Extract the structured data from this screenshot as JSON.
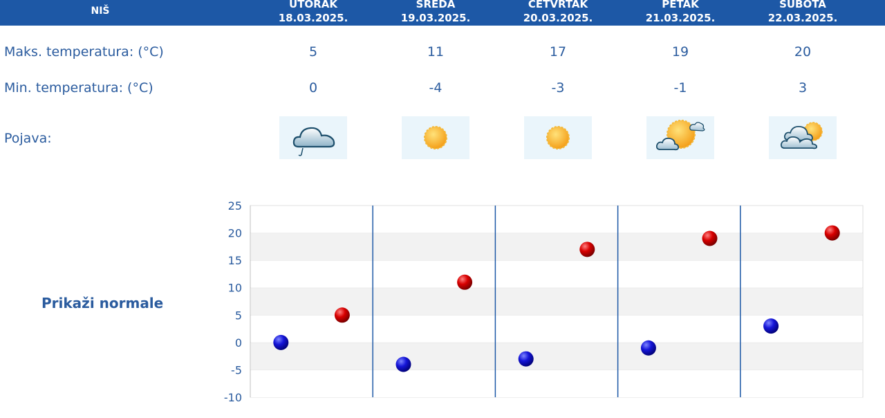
{
  "header": {
    "city": "NIŠ"
  },
  "days": [
    {
      "name": "UTORAK",
      "date": "18.03.2025.",
      "max": "5",
      "min": "0",
      "icon": "rain-cloud-icon"
    },
    {
      "name": "SREDA",
      "date": "19.03.2025.",
      "max": "11",
      "min": "-4",
      "icon": "sun-icon"
    },
    {
      "name": "ČETVRTAK",
      "date": "20.03.2025.",
      "max": "17",
      "min": "-3",
      "icon": "sun-icon"
    },
    {
      "name": "PETAK",
      "date": "21.03.2025.",
      "max": "19",
      "min": "-1",
      "icon": "sun-cloud-icon"
    },
    {
      "name": "SUBOTA",
      "date": "22.03.2025.",
      "max": "20",
      "min": "3",
      "icon": "cloud-sun-icon"
    }
  ],
  "labels": {
    "max": "Maks. temperatura: (°C)",
    "min": "Min. temperatura: (°C)",
    "phenomenon": "Pojava:"
  },
  "normals_link": "Prikaži normale",
  "chart_data": {
    "type": "scatter",
    "categories": [
      "18.03.2025.",
      "19.03.2025.",
      "20.03.2025.",
      "21.03.2025.",
      "22.03.2025."
    ],
    "series": [
      {
        "values": [
          0,
          -4,
          -3,
          -1,
          3
        ],
        "color": "#1010c8"
      },
      {
        "values": [
          5,
          11,
          17,
          19,
          20
        ],
        "color": "#cc0000"
      }
    ],
    "yticks": [
      25,
      20,
      15,
      10,
      5,
      0,
      -5,
      -10
    ],
    "ylim": [
      -10,
      25
    ],
    "grid": true,
    "colors": {
      "band": "#f2f2f2",
      "divider": "#1d58a6"
    }
  }
}
